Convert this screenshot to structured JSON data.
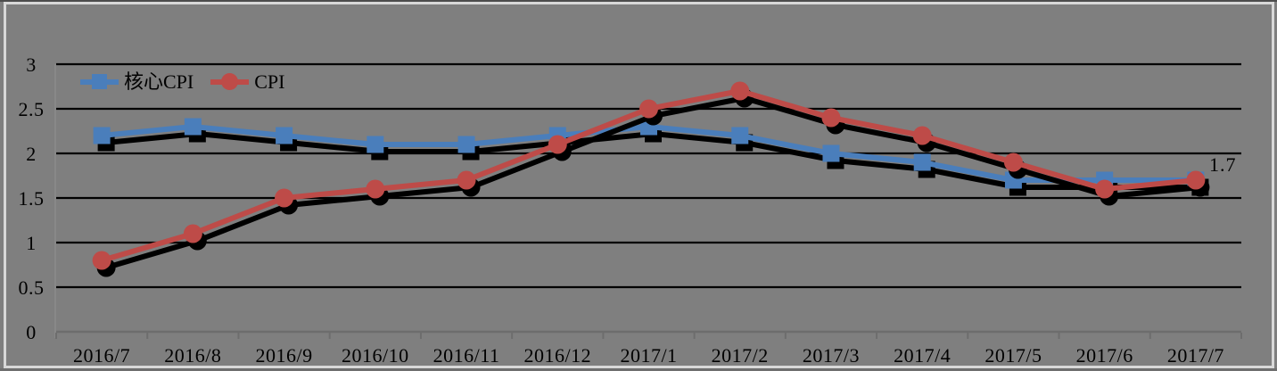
{
  "chart": {
    "background": "#7f7f7f",
    "frame_color": "#d8d8d8",
    "gridline_color": "#000000",
    "axis_color": "#6d6d6d",
    "axis_guide_color": "#8c8c8c",
    "text_color": "#000000",
    "shadow_color": "#000000"
  },
  "chart_data": {
    "type": "line",
    "categories": [
      "2016/7",
      "2016/8",
      "2016/9",
      "2016/10",
      "2016/11",
      "2016/12",
      "2017/1",
      "2017/2",
      "2017/3",
      "2017/4",
      "2017/5",
      "2017/6",
      "2017/7"
    ],
    "series": [
      {
        "name": "核心CPI",
        "marker": "square",
        "color": "#4a7ebb",
        "values": [
          2.2,
          2.3,
          2.2,
          2.1,
          2.1,
          2.2,
          2.3,
          2.2,
          2.0,
          1.9,
          1.7,
          1.7,
          1.7
        ]
      },
      {
        "name": "CPI",
        "marker": "circle",
        "color": "#be4b48",
        "values": [
          0.8,
          1.1,
          1.5,
          1.6,
          1.7,
          2.1,
          2.5,
          2.7,
          2.4,
          2.2,
          1.9,
          1.6,
          1.7
        ]
      }
    ],
    "ylim": [
      0,
      3
    ],
    "yticks": [
      0,
      0.5,
      1,
      1.5,
      2,
      2.5,
      3
    ],
    "grid": true,
    "legend_position": "top-left",
    "annotation": {
      "text": "1.7",
      "category": "2017/7",
      "value": 1.7
    }
  }
}
